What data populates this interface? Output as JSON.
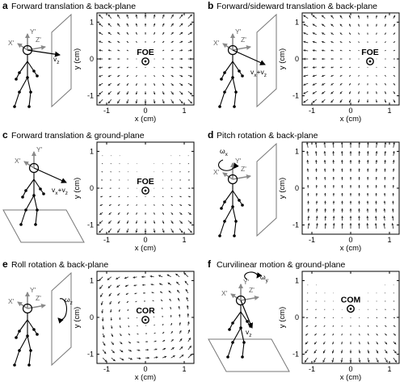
{
  "panels": [
    {
      "id": "a",
      "letter": "a",
      "title": "Forward translation & back-plane",
      "scene": "back",
      "field": "expand",
      "marker": {
        "label": "FOE",
        "x": 0,
        "y": 0
      },
      "figure_labels": {
        "x_axis": "X'",
        "y_axis": "Y'",
        "z_axis": "Z'",
        "velocity": "v",
        "velocity_sub": "z"
      }
    },
    {
      "id": "b",
      "letter": "b",
      "title": "Forward/sideward translation & back-plane",
      "scene": "back",
      "field": "expand",
      "marker": {
        "label": "FOE",
        "x": 0.5,
        "y": 0
      },
      "figure_labels": {
        "x_axis": "X'",
        "y_axis": "Y'",
        "z_axis": "Z'",
        "velocity": "vx+vz",
        "velocity_sub": ""
      }
    },
    {
      "id": "c",
      "letter": "c",
      "title": "Forward translation & ground-plane",
      "scene": "ground",
      "field": "ground-expand",
      "marker": {
        "label": "FOE",
        "x": 0,
        "y": 0
      },
      "figure_labels": {
        "x_axis": "X'",
        "y_axis": "Y'",
        "z_axis": "",
        "velocity": "vx+vz",
        "velocity_sub": ""
      }
    },
    {
      "id": "d",
      "letter": "d",
      "title": "Pitch rotation & back-plane",
      "scene": "back",
      "field": "pitch",
      "marker": null,
      "figure_labels": {
        "x_axis": "X'",
        "y_axis": "Y'",
        "z_axis": "Z'",
        "velocity": "ω",
        "velocity_sub": "x"
      }
    },
    {
      "id": "e",
      "letter": "e",
      "title": "Roll rotation & back-plane",
      "scene": "back",
      "field": "roll",
      "marker": {
        "label": "COR",
        "x": 0,
        "y": 0
      },
      "figure_labels": {
        "x_axis": "X'",
        "y_axis": "Y'",
        "z_axis": "Z'",
        "velocity": "ω",
        "velocity_sub": "z"
      }
    },
    {
      "id": "f",
      "letter": "f",
      "title": "Curvilinear motion & ground-plane",
      "scene": "ground",
      "field": "ground-expand",
      "marker": {
        "label": "COM",
        "x": 0,
        "y": 0.3
      },
      "figure_labels": {
        "x_axis": "X'",
        "y_axis": "Y'",
        "z_axis": "Z'",
        "velocity": "v",
        "velocity_sub": "z",
        "rotation": "ω",
        "rotation_sub": "y"
      }
    }
  ],
  "axes": {
    "xlabel": "x (cm)",
    "ylabel": "y (cm)",
    "xticks": [
      "-1",
      "0",
      "1"
    ],
    "yticks": [
      "1",
      "0",
      "-1"
    ],
    "xlim": [
      -1.25,
      1.25
    ],
    "ylim": [
      -1.25,
      1.25
    ]
  },
  "colors": {
    "axes_gray": "#8a8a8a",
    "plane": "#777777",
    "ink": "#000000"
  }
}
